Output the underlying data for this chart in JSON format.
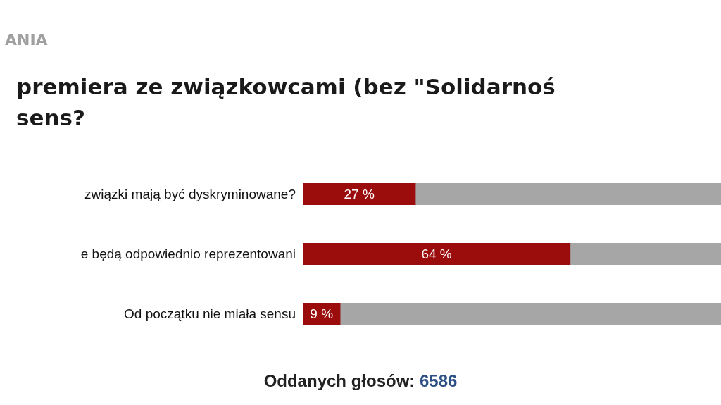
{
  "chart_data": {
    "type": "bar",
    "orientation": "horizontal",
    "subtitle": "ANIA",
    "title": "premiera ze związkowcami (bez \"Solidarnoś\nsens?",
    "categories": [
      "związki mają być dyskryminowane?",
      "e będą odpowiednio reprezentowani",
      "Od początku nie miała sensu"
    ],
    "values": [
      27,
      64,
      9
    ],
    "value_labels": [
      "27 %",
      "64 %",
      "9 %"
    ],
    "color": "#9b0c0c",
    "annotations": [
      "Oddanych głosów: 6586"
    ]
  }
}
